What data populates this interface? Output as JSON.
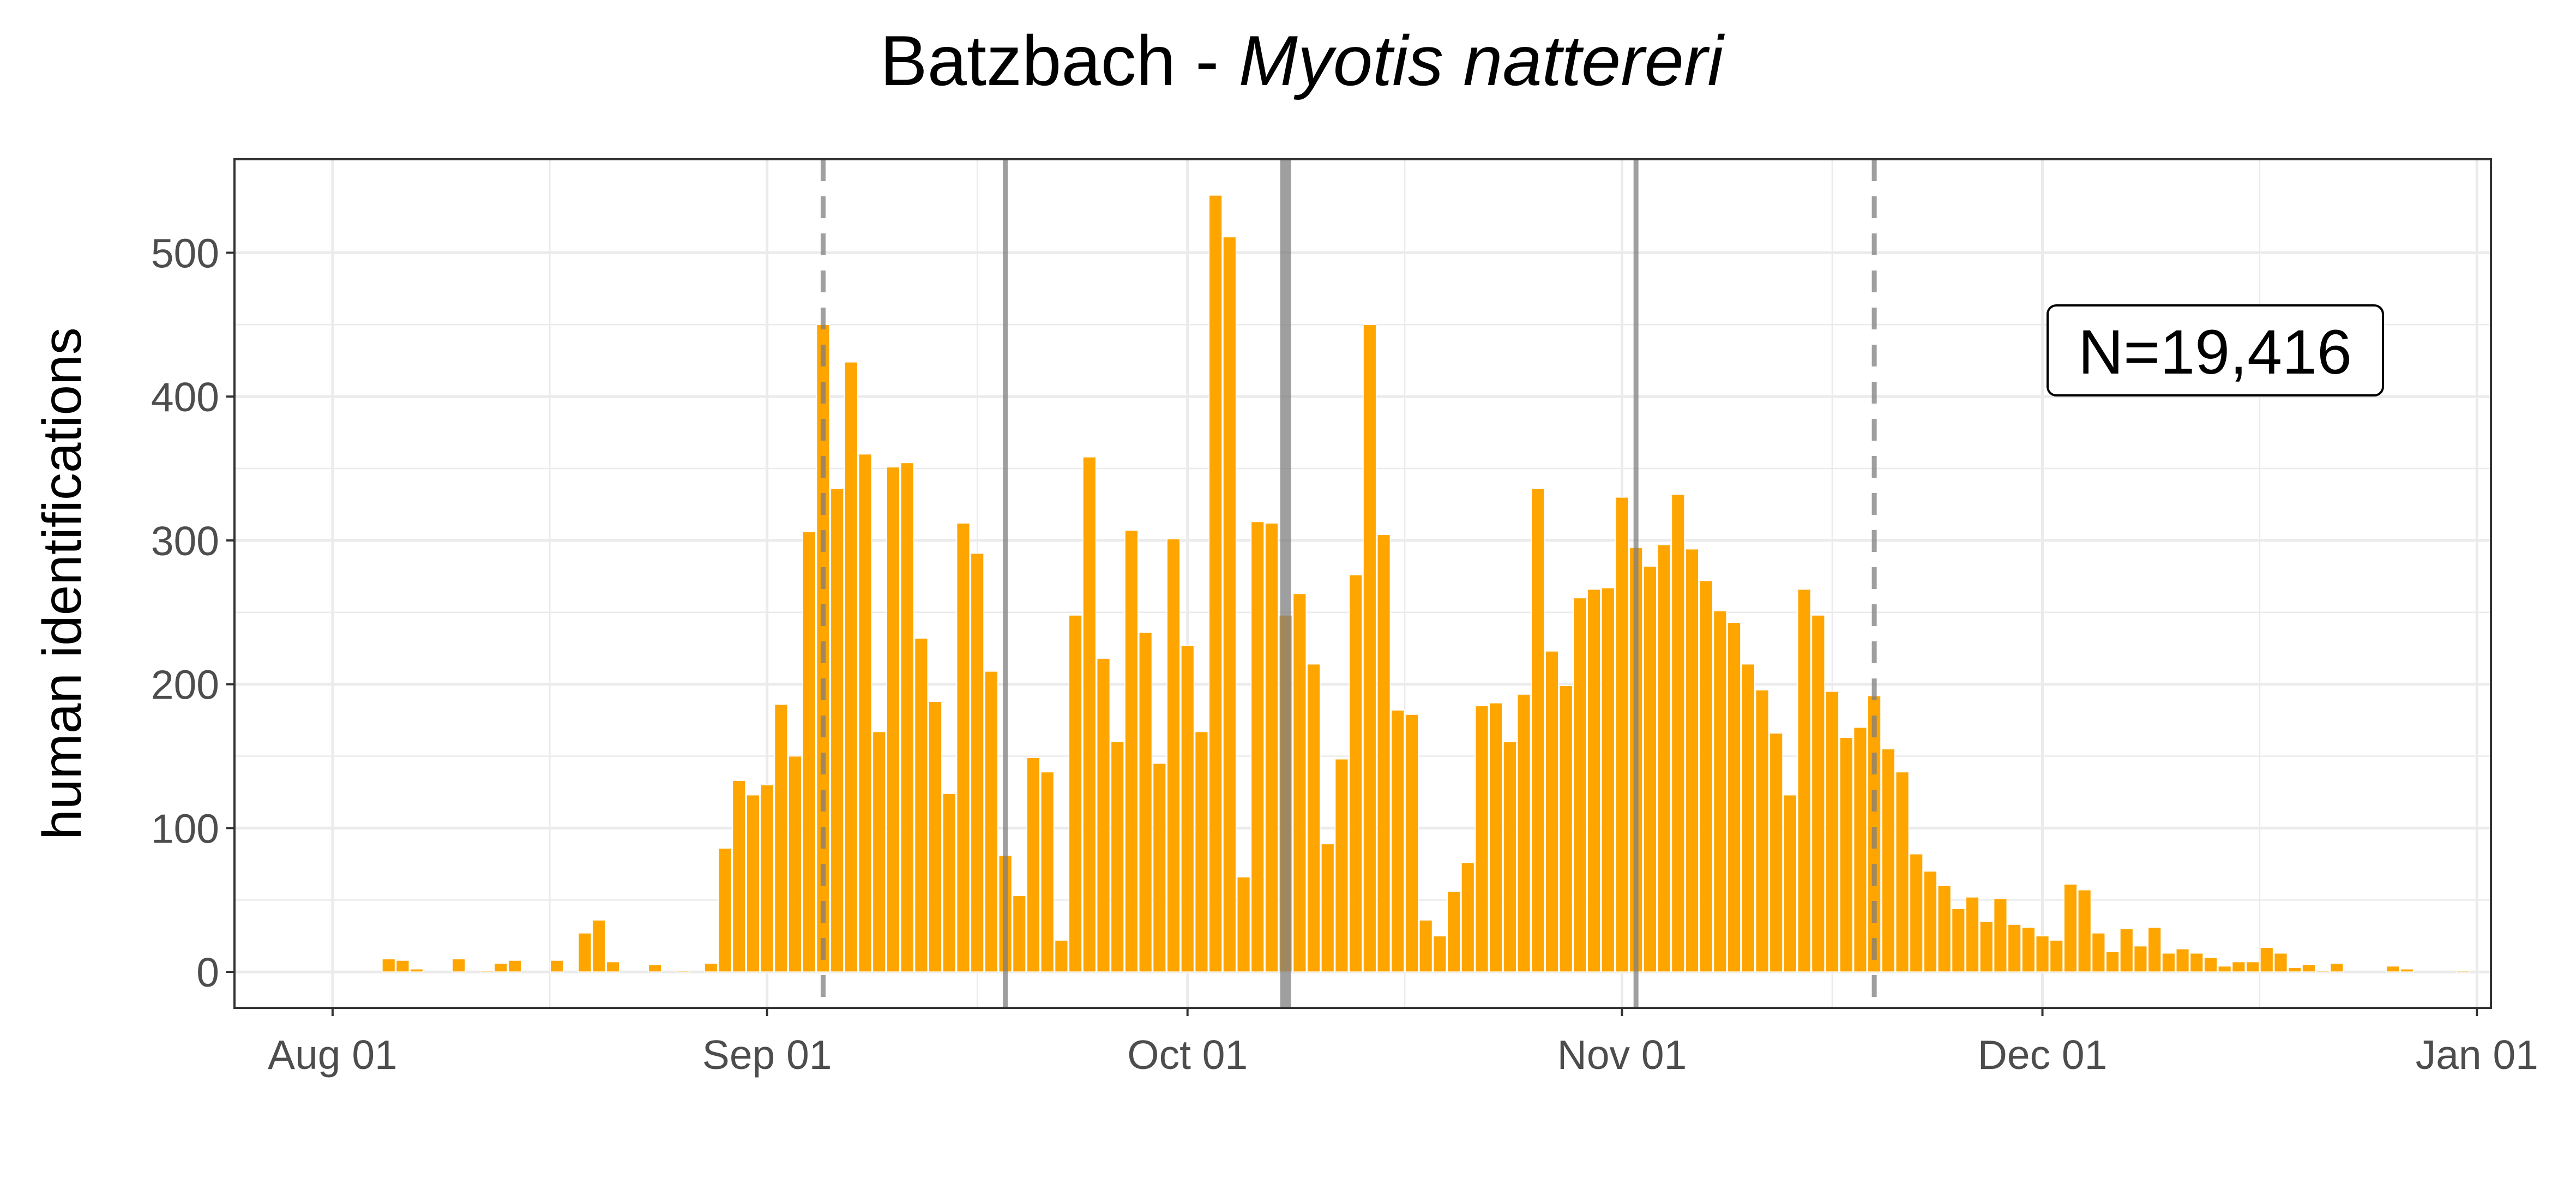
{
  "chart_data": {
    "type": "bar",
    "title": "Batzbach - ",
    "title_species": "Myotis nattereri",
    "xlabel": "",
    "ylabel": "human identifications",
    "x_unit": "date",
    "xlim": [
      "2023-07-25",
      "2024-01-02"
    ],
    "ylim": [
      -25,
      565
    ],
    "x_ticks": [
      {
        "date": "2023-08-01",
        "label": "Aug 01"
      },
      {
        "date": "2023-09-01",
        "label": "Sep 01"
      },
      {
        "date": "2023-10-01",
        "label": "Oct 01"
      },
      {
        "date": "2023-11-01",
        "label": "Nov 01"
      },
      {
        "date": "2023-12-01",
        "label": "Dec 01"
      },
      {
        "date": "2024-01-01",
        "label": "Jan 01"
      }
    ],
    "y_ticks": [
      0,
      100,
      200,
      300,
      400,
      500
    ],
    "grid": true,
    "bar_color": "#FFA500",
    "annotation": "N=19,416",
    "vlines": [
      {
        "date": "2023-09-05",
        "style": "dashed"
      },
      {
        "date": "2023-09-18",
        "style": "solid"
      },
      {
        "date": "2023-10-08",
        "style": "solid-thick"
      },
      {
        "date": "2023-11-02",
        "style": "solid"
      },
      {
        "date": "2023-11-19",
        "style": "dashed"
      }
    ],
    "series": [
      {
        "start_date": "2023-08-05",
        "values": [
          9,
          8,
          2,
          0,
          0,
          9,
          0,
          1,
          6,
          8,
          0,
          0,
          8,
          0,
          27,
          36,
          7,
          0,
          0,
          5,
          0,
          1,
          0,
          6,
          86,
          133,
          123,
          130,
          186,
          150,
          306,
          450,
          336,
          424,
          360,
          167,
          351,
          354,
          232,
          188,
          124,
          312,
          291,
          209,
          81,
          53,
          149,
          139,
          22,
          248,
          358,
          218,
          160,
          307,
          236,
          145,
          301,
          227,
          167,
          540,
          511,
          66,
          313,
          312,
          248,
          263,
          214,
          89,
          148,
          276,
          450,
          304,
          182,
          179,
          36,
          25,
          56,
          76,
          185,
          187,
          160,
          193,
          336,
          223,
          199,
          260,
          266,
          267,
          330,
          295,
          282,
          297,
          332,
          294,
          272,
          251,
          243,
          214,
          196,
          166,
          123,
          266,
          248,
          195,
          163,
          170,
          192,
          155,
          139,
          82,
          70,
          60,
          44,
          52,
          35,
          51,
          33,
          31,
          25,
          22,
          61,
          57,
          27,
          14,
          30,
          18,
          31,
          13,
          16,
          13,
          10,
          4,
          7,
          7,
          17,
          13,
          3,
          5,
          1,
          6,
          0,
          0,
          0,
          4,
          2,
          0,
          0,
          0,
          1
        ]
      }
    ]
  }
}
